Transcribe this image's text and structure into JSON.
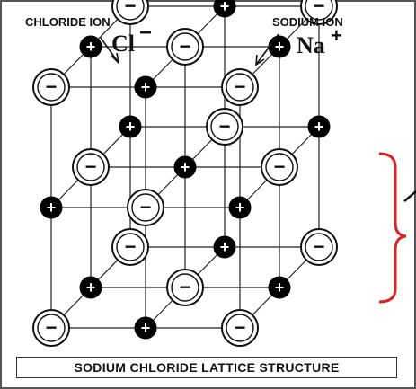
{
  "labels": {
    "chloride_ion": "CHLORIDE ION",
    "chloride_symbol": "Cl",
    "chloride_charge": "−",
    "sodium_ion": "SODIUM ION",
    "sodium_symbol": "Na",
    "sodium_charge": "+"
  },
  "caption": "SODIUM CHLORIDE LATTICE STRUCTURE",
  "ion_signs": {
    "chloride": "−",
    "sodium": "+"
  },
  "colors": {
    "chloride_fill": "#ffffff",
    "sodium_fill": "#000000",
    "line": "#222222",
    "bracket": "#dd2222"
  }
}
